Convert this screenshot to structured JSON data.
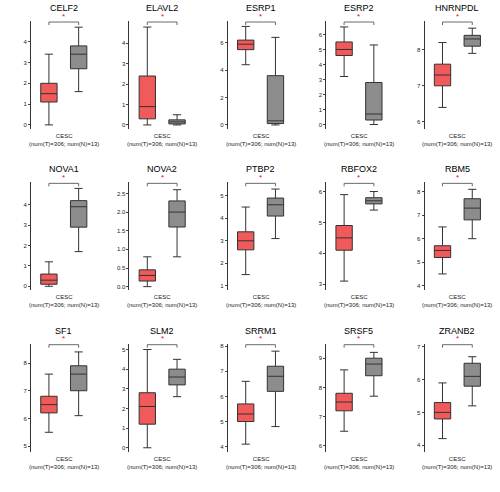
{
  "chart_data": [
    {
      "type": "box",
      "title": "CELF2",
      "x_label": [
        "CESC",
        "(num(T)=306; num(N)=13)"
      ],
      "annotation": "*",
      "categories": [
        null,
        null
      ],
      "ylim": [
        -0.2,
        5
      ],
      "yticks": [
        0,
        1,
        2,
        3,
        4
      ],
      "boxes": [
        {
          "color": "#f05a5a",
          "q1": 1.1,
          "median": 1.5,
          "q3": 2.0,
          "lower": 0,
          "upper": 3.4
        },
        {
          "color": "#8c8c8c",
          "q1": 2.7,
          "median": 3.4,
          "q3": 3.8,
          "lower": 1.6,
          "upper": 4.7
        }
      ]
    },
    {
      "type": "box",
      "title": "ELAVL2",
      "x_label": [
        "CESC",
        "(num(T)=306; num(N)=13)"
      ],
      "annotation": "*",
      "categories": [
        null,
        null
      ],
      "ylim": [
        -0.2,
        5.1
      ],
      "yticks": [
        0,
        1,
        2,
        3,
        4
      ],
      "boxes": [
        {
          "color": "#f05a5a",
          "q1": 0.3,
          "median": 0.9,
          "q3": 2.4,
          "lower": 0,
          "upper": 4.8
        },
        {
          "color": "#8c8c8c",
          "q1": 0.05,
          "median": 0.15,
          "q3": 0.25,
          "lower": 0,
          "upper": 0.5
        }
      ]
    },
    {
      "type": "box",
      "title": "ESRP1",
      "x_label": [
        "CESC",
        "(num(T)=306; num(N)=13)"
      ],
      "annotation": "*",
      "categories": [
        null,
        null
      ],
      "ylim": [
        -0.3,
        7.6
      ],
      "yticks": [
        0,
        2,
        4,
        6
      ],
      "boxes": [
        {
          "color": "#f05a5a",
          "q1": 5.5,
          "median": 5.9,
          "q3": 6.2,
          "lower": 4.4,
          "upper": 7.2
        },
        {
          "color": "#8c8c8c",
          "q1": 0.1,
          "median": 0.3,
          "q3": 3.6,
          "lower": 0,
          "upper": 6.4
        }
      ]
    },
    {
      "type": "box",
      "title": "ESRP2",
      "x_label": [
        "CESC",
        "(num(T)=306; num(N)=13)"
      ],
      "annotation": "*",
      "categories": [
        null,
        null
      ],
      "ylim": [
        -0.3,
        6.9
      ],
      "yticks": [
        0,
        1,
        2,
        3,
        4,
        5,
        6
      ],
      "boxes": [
        {
          "color": "#f05a5a",
          "q1": 4.6,
          "median": 5.0,
          "q3": 5.5,
          "lower": 3.2,
          "upper": 6.5
        },
        {
          "color": "#8c8c8c",
          "q1": 0.3,
          "median": 0.7,
          "q3": 2.8,
          "lower": 0,
          "upper": 5.3
        }
      ]
    },
    {
      "type": "box",
      "title": "HNRNPDL",
      "x_label": [
        "CESC",
        "(num(T)=306; num(N)=13)"
      ],
      "annotation": "*",
      "categories": [
        null,
        null
      ],
      "ylim": [
        5.8,
        8.8
      ],
      "yticks": [
        6,
        7,
        8
      ],
      "boxes": [
        {
          "color": "#f05a5a",
          "q1": 7.0,
          "median": 7.3,
          "q3": 7.6,
          "lower": 6.4,
          "upper": 8.2
        },
        {
          "color": "#8c8c8c",
          "q1": 8.1,
          "median": 8.3,
          "q3": 8.4,
          "lower": 7.9,
          "upper": 8.6
        }
      ]
    },
    {
      "type": "box",
      "title": "NOVA1",
      "x_label": [
        "CESC",
        "(num(T)=306; num(N)=13)"
      ],
      "annotation": "*",
      "categories": [
        null,
        null
      ],
      "ylim": [
        -0.2,
        5.1
      ],
      "yticks": [
        0,
        1,
        2,
        3,
        4
      ],
      "boxes": [
        {
          "color": "#f05a5a",
          "q1": 0.1,
          "median": 0.3,
          "q3": 0.6,
          "lower": 0,
          "upper": 1.2
        },
        {
          "color": "#8c8c8c",
          "q1": 2.9,
          "median": 3.9,
          "q3": 4.2,
          "lower": 1.7,
          "upper": 4.8
        }
      ]
    },
    {
      "type": "box",
      "title": "NOVA2",
      "x_label": [
        "CESC",
        "(num(T)=306; num(N)=13)"
      ],
      "annotation": "*",
      "categories": [
        null,
        null
      ],
      "ylim": [
        -0.1,
        2.8
      ],
      "yticks": [
        {
          "value": 0,
          "label": "0.0"
        },
        {
          "value": 0.5,
          "label": "0.5"
        },
        {
          "value": 1,
          "label": "1.0"
        },
        {
          "value": 1.5,
          "label": "1.5"
        },
        {
          "value": 2,
          "label": "2.0"
        },
        {
          "value": 2.5,
          "label": "2.5"
        }
      ],
      "boxes": [
        {
          "color": "#f05a5a",
          "q1": 0.15,
          "median": 0.3,
          "q3": 0.45,
          "lower": 0,
          "upper": 0.8
        },
        {
          "color": "#8c8c8c",
          "q1": 1.6,
          "median": 2.0,
          "q3": 2.3,
          "lower": 0.8,
          "upper": 2.6
        }
      ]
    },
    {
      "type": "box",
      "title": "PTBP2",
      "x_label": [
        "CESC",
        "(num(T)=306; num(N)=13)"
      ],
      "annotation": "*",
      "categories": [
        null,
        null
      ],
      "ylim": [
        0.8,
        5.6
      ],
      "yticks": [
        1,
        2,
        3,
        4,
        5
      ],
      "boxes": [
        {
          "color": "#f05a5a",
          "q1": 2.6,
          "median": 3.0,
          "q3": 3.4,
          "lower": 1.5,
          "upper": 4.5
        },
        {
          "color": "#8c8c8c",
          "q1": 4.1,
          "median": 4.6,
          "q3": 4.9,
          "lower": 3.1,
          "upper": 5.3
        }
      ]
    },
    {
      "type": "box",
      "title": "RBFOX2",
      "x_label": [
        "CESC",
        "(num(T)=306; num(N)=13)"
      ],
      "annotation": "*",
      "categories": [
        null,
        null
      ],
      "ylim": [
        2.8,
        6.3
      ],
      "yticks": [
        3,
        4,
        5,
        6
      ],
      "boxes": [
        {
          "color": "#f05a5a",
          "q1": 4.1,
          "median": 4.5,
          "q3": 4.9,
          "lower": 3.1,
          "upper": 5.9
        },
        {
          "color": "#8c8c8c",
          "q1": 5.6,
          "median": 5.7,
          "q3": 5.8,
          "lower": 5.4,
          "upper": 6.0
        }
      ]
    },
    {
      "type": "box",
      "title": "RBM5",
      "x_label": [
        "CESC",
        "(num(T)=306; num(N)=13)"
      ],
      "annotation": "*",
      "categories": [
        null,
        null
      ],
      "ylim": [
        3.8,
        8.4
      ],
      "yticks": [
        4,
        5,
        6,
        7,
        8
      ],
      "boxes": [
        {
          "color": "#f05a5a",
          "q1": 5.2,
          "median": 5.5,
          "q3": 5.7,
          "lower": 4.5,
          "upper": 6.5
        },
        {
          "color": "#8c8c8c",
          "q1": 6.8,
          "median": 7.3,
          "q3": 7.7,
          "lower": 6.0,
          "upper": 8.1
        }
      ]
    },
    {
      "type": "box",
      "title": "SF1",
      "x_label": [
        "CESC",
        "(num(T)=306; num(N)=13)"
      ],
      "annotation": "*",
      "categories": [
        null,
        null
      ],
      "ylim": [
        4.8,
        8.7
      ],
      "yticks": [
        5,
        6,
        7,
        8
      ],
      "boxes": [
        {
          "color": "#f05a5a",
          "q1": 6.2,
          "median": 6.5,
          "q3": 6.8,
          "lower": 5.5,
          "upper": 7.6
        },
        {
          "color": "#8c8c8c",
          "q1": 7.0,
          "median": 7.6,
          "q3": 7.9,
          "lower": 6.1,
          "upper": 8.4
        }
      ]
    },
    {
      "type": "box",
      "title": "SLM2",
      "x_label": [
        "CESC",
        "(num(T)=306; num(N)=13)"
      ],
      "annotation": "*",
      "categories": [
        null,
        null
      ],
      "ylim": [
        -0.2,
        5.3
      ],
      "yticks": [
        0,
        1,
        2,
        3,
        4,
        5
      ],
      "boxes": [
        {
          "color": "#f05a5a",
          "q1": 1.2,
          "median": 2.1,
          "q3": 2.8,
          "lower": 0,
          "upper": 5.0
        },
        {
          "color": "#8c8c8c",
          "q1": 3.2,
          "median": 3.6,
          "q3": 4.0,
          "lower": 2.6,
          "upper": 4.5
        }
      ]
    },
    {
      "type": "box",
      "title": "SRRM1",
      "x_label": [
        "CESC",
        "(num(T)=306; num(N)=13)"
      ],
      "annotation": "*",
      "categories": [
        null,
        null
      ],
      "ylim": [
        3.8,
        8.1
      ],
      "yticks": [
        4,
        5,
        6,
        7,
        8
      ],
      "boxes": [
        {
          "color": "#f05a5a",
          "q1": 5.0,
          "median": 5.3,
          "q3": 5.7,
          "lower": 4.1,
          "upper": 6.6
        },
        {
          "color": "#8c8c8c",
          "q1": 6.2,
          "median": 6.8,
          "q3": 7.2,
          "lower": 4.8,
          "upper": 7.8
        }
      ]
    },
    {
      "type": "box",
      "title": "SRSF5",
      "x_label": [
        "CESC",
        "(num(T)=306; num(N)=13)"
      ],
      "annotation": "*",
      "categories": [
        null,
        null
      ],
      "ylim": [
        5.8,
        9.5
      ],
      "yticks": [
        6,
        7,
        8,
        9
      ],
      "boxes": [
        {
          "color": "#f05a5a",
          "q1": 7.2,
          "median": 7.5,
          "q3": 7.8,
          "lower": 6.5,
          "upper": 8.6
        },
        {
          "color": "#8c8c8c",
          "q1": 8.4,
          "median": 8.8,
          "q3": 9.0,
          "lower": 7.7,
          "upper": 9.2
        }
      ]
    },
    {
      "type": "box",
      "title": "ZRANB2",
      "x_label": [
        "CESC",
        "(num(T)=306; num(N)=13)"
      ],
      "annotation": "*",
      "categories": [
        null,
        null
      ],
      "ylim": [
        3.8,
        7.1
      ],
      "yticks": [
        4,
        5,
        6,
        7
      ],
      "boxes": [
        {
          "color": "#f05a5a",
          "q1": 4.8,
          "median": 5.0,
          "q3": 5.3,
          "lower": 4.2,
          "upper": 5.9
        },
        {
          "color": "#8c8c8c",
          "q1": 5.8,
          "median": 6.1,
          "q3": 6.5,
          "lower": 5.2,
          "upper": 6.7
        }
      ]
    }
  ]
}
